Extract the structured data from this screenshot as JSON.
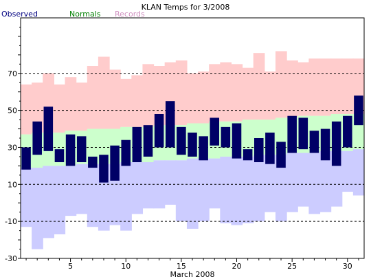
{
  "chart_data": {
    "type": "bar",
    "title": "KLAN Temps for 3/2008",
    "xlabel": "March 2008",
    "ylabel": "",
    "ylim": [
      -30,
      100
    ],
    "y_ticks": [
      -30,
      -10,
      10,
      30,
      50,
      70
    ],
    "x_ticks": [
      5,
      10,
      15,
      20,
      25,
      30
    ],
    "grid": "horizontal dashed at 10, 30, 50, 70 and -10",
    "legend": [
      {
        "name": "Observed",
        "color": "#000080"
      },
      {
        "name": "Normals",
        "color": "#008000"
      },
      {
        "name": "Records",
        "color": "#d090c0"
      }
    ],
    "days": [
      1,
      2,
      3,
      4,
      5,
      6,
      7,
      8,
      9,
      10,
      11,
      12,
      13,
      14,
      15,
      16,
      17,
      18,
      19,
      20,
      21,
      22,
      23,
      24,
      25,
      26,
      27,
      28,
      29,
      30,
      31
    ],
    "record_high": [
      64,
      65,
      70,
      64,
      68,
      65,
      74,
      79,
      72,
      67,
      69,
      75,
      74,
      76,
      77,
      70,
      71,
      75,
      76,
      75,
      73,
      81,
      71,
      82,
      77,
      76,
      78,
      78,
      78,
      78,
      78
    ],
    "record_low": [
      -13,
      -25,
      -19,
      -17,
      -7,
      -6,
      -13,
      -15,
      -12,
      -15,
      -6,
      -3,
      -3,
      -1,
      -10,
      -14,
      -10,
      -3,
      -11,
      -12,
      -11,
      -10,
      -5,
      -10,
      -5,
      -2,
      -6,
      -5,
      -2,
      6,
      4
    ],
    "normal_high": [
      37,
      38,
      38,
      38,
      39,
      39,
      40,
      40,
      40,
      41,
      41,
      41,
      42,
      42,
      42,
      43,
      43,
      44,
      44,
      44,
      45,
      45,
      45,
      46,
      46,
      47,
      47,
      47,
      48,
      48,
      48
    ],
    "normal_low": [
      19,
      19,
      20,
      20,
      20,
      21,
      21,
      21,
      21,
      22,
      22,
      22,
      23,
      23,
      23,
      24,
      24,
      24,
      25,
      25,
      25,
      26,
      26,
      26,
      27,
      27,
      27,
      28,
      28,
      28,
      29
    ],
    "observed_high": [
      30,
      44,
      52,
      29,
      37,
      36,
      25,
      26,
      31,
      34,
      41,
      42,
      48,
      55,
      41,
      38,
      36,
      46,
      41,
      43,
      29,
      35,
      38,
      33,
      47,
      46,
      39,
      40,
      44,
      47,
      58
    ],
    "observed_low": [
      18,
      26,
      28,
      22,
      20,
      22,
      19,
      11,
      12,
      20,
      22,
      25,
      30,
      30,
      26,
      25,
      23,
      31,
      30,
      24,
      23,
      22,
      21,
      19,
      27,
      29,
      27,
      23,
      20,
      30,
      42
    ]
  }
}
